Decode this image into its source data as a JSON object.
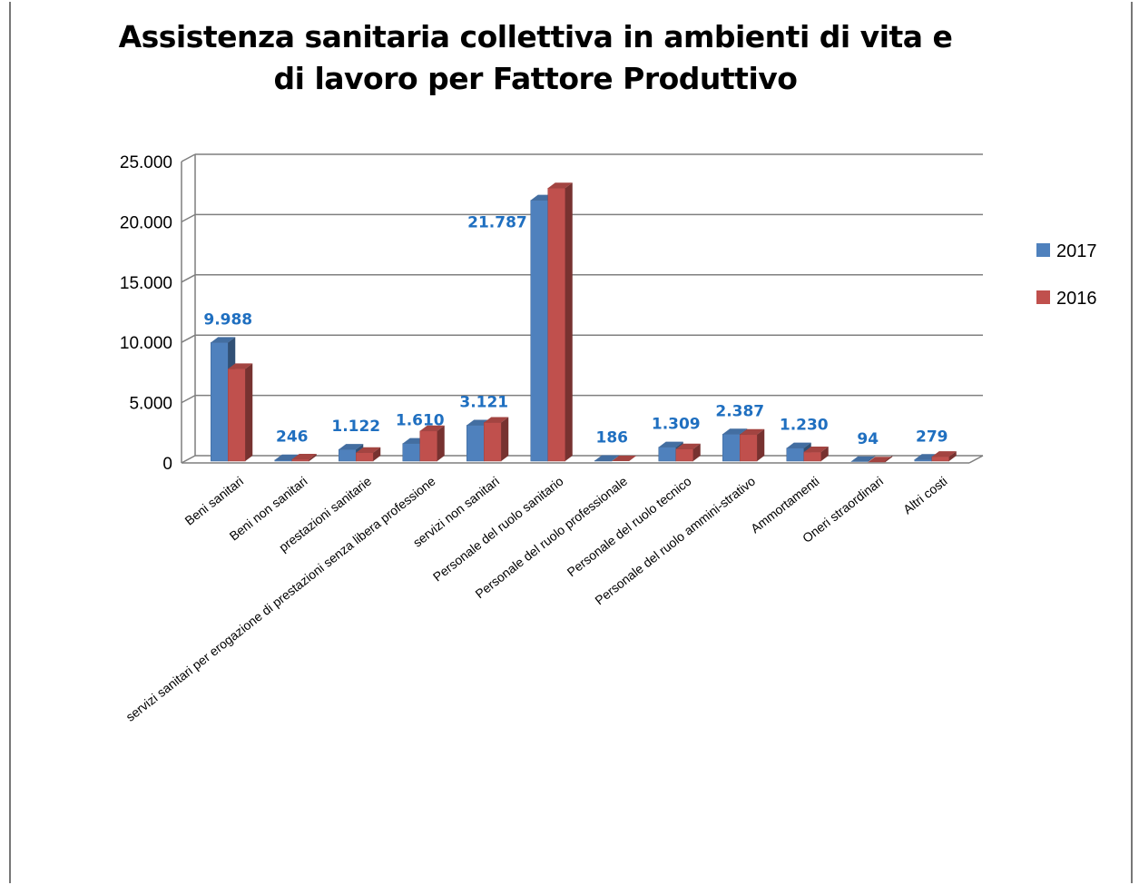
{
  "chart_data": {
    "type": "bar",
    "title_lines": [
      "Assistenza sanitaria collettiva in ambienti di vita e",
      "di lavoro per Fattore Produttivo"
    ],
    "categories": [
      "Beni sanitari",
      "Beni non sanitari",
      "prestazioni sanitarie",
      "servizi sanitari per erogazione di prestazioni senza libera professione",
      "servizi non sanitari",
      "Personale del ruolo sanitario",
      "Personale del ruolo professionale",
      "Personale del ruolo tecnico",
      "Personale del ruolo ammini-strativo",
      "Ammortamenti",
      "Oneri straordinari",
      "Altri costi"
    ],
    "series": [
      {
        "name": "2017",
        "color": "#4f81bd",
        "values": [
          9988,
          246,
          1122,
          1610,
          3121,
          21787,
          186,
          1309,
          2387,
          1230,
          94,
          279
        ],
        "labels": [
          "9.988",
          "246",
          "1.122",
          "1.610",
          "3.121",
          "21.787",
          "186",
          "1.309",
          "2.387",
          "1.230",
          "94",
          "279"
        ]
      },
      {
        "name": "2016",
        "color": "#c0504d",
        "values": [
          7800,
          300,
          850,
          2650,
          3350,
          22800,
          150,
          1150,
          2350,
          900,
          60,
          520
        ]
      }
    ],
    "y_tick_labels": [
      "0",
      "5.000",
      "10.000",
      "15.000",
      "20.000",
      "25.000"
    ],
    "ylim": [
      0,
      25000
    ],
    "grid": true,
    "legend_position": "right",
    "style": "3d-clustered-column"
  }
}
